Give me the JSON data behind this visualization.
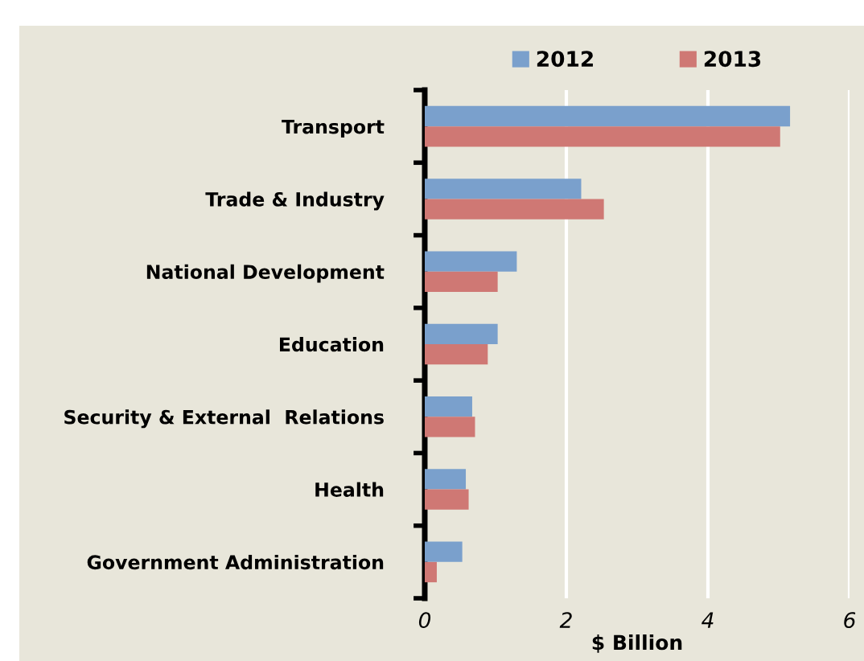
{
  "chart_data": {
    "type": "bar",
    "orientation": "horizontal",
    "xlabel": "$ Billion",
    "categories": [
      "Transport",
      "Trade & Industry",
      "National Development",
      "Education",
      "Security & External  Relations",
      "Health",
      "Government Administration"
    ],
    "series": [
      {
        "name": "2012",
        "color": "#7aa0cc",
        "values": [
          5.16,
          2.21,
          1.3,
          1.03,
          0.67,
          0.58,
          0.53
        ]
      },
      {
        "name": "2013",
        "color": "#cf7874",
        "values": [
          5.02,
          2.53,
          1.03,
          0.89,
          0.71,
          0.62,
          0.17
        ]
      }
    ],
    "xlim": [
      0,
      6
    ],
    "xticks": [
      0,
      2,
      4,
      6
    ],
    "grid": "x",
    "legend": "top"
  }
}
